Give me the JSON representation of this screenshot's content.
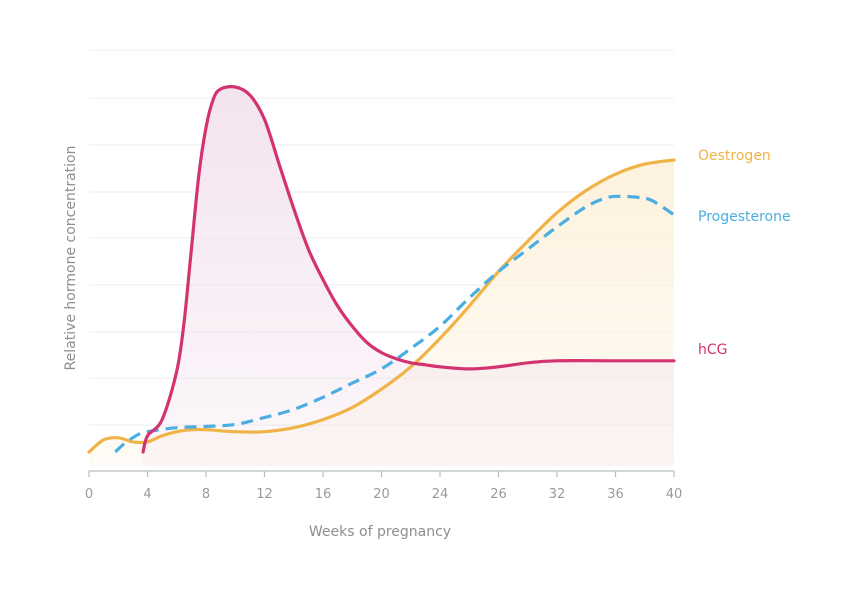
{
  "chart_data": {
    "type": "line",
    "title": "",
    "xlabel": "Weeks of pregnancy",
    "ylabel": "Relative hormone concentration",
    "x_ticks": [
      "0",
      "4",
      "8",
      "12",
      "16",
      "20",
      "24",
      "26",
      "32",
      "36",
      "40"
    ],
    "ylim": [
      0,
      100
    ],
    "grid": true,
    "legend": "series labels at right end of lines",
    "series": [
      {
        "name": "Oestrogen",
        "color": "#f0b347",
        "style": "solid",
        "fill": "#fdf1dc",
        "points": [
          [
            0,
            0
          ],
          [
            1,
            3
          ],
          [
            2,
            3.5
          ],
          [
            3,
            2.5
          ],
          [
            4,
            2.5
          ],
          [
            5,
            4
          ],
          [
            6,
            5
          ],
          [
            7,
            5.5
          ],
          [
            8,
            5.5
          ],
          [
            10,
            5
          ],
          [
            12,
            5
          ],
          [
            14,
            6
          ],
          [
            16,
            8
          ],
          [
            18,
            11
          ],
          [
            20,
            15.5
          ],
          [
            22,
            21
          ],
          [
            24,
            28
          ],
          [
            26,
            36
          ],
          [
            28,
            44.5
          ],
          [
            30,
            52
          ],
          [
            32,
            59
          ],
          [
            34,
            64.5
          ],
          [
            36,
            68.5
          ],
          [
            38,
            71
          ],
          [
            40,
            72
          ]
        ]
      },
      {
        "name": "Progesterone",
        "color": "#4aaee0",
        "style": "dashed",
        "points": [
          [
            1.8,
            0
          ],
          [
            2.4,
            2
          ],
          [
            3.3,
            4.2
          ],
          [
            4,
            5
          ],
          [
            6,
            6
          ],
          [
            8,
            6.3
          ],
          [
            10,
            6.8
          ],
          [
            12,
            8.5
          ],
          [
            14,
            10.5
          ],
          [
            16,
            13.5
          ],
          [
            18,
            17
          ],
          [
            20,
            20.5
          ],
          [
            22,
            25.5
          ],
          [
            24,
            31
          ],
          [
            26,
            38
          ],
          [
            28,
            44.5
          ],
          [
            30,
            50
          ],
          [
            32,
            55.5
          ],
          [
            34,
            60.5
          ],
          [
            35.5,
            62.8
          ],
          [
            36.5,
            63
          ],
          [
            37.5,
            62.8
          ],
          [
            38.5,
            62
          ],
          [
            40,
            58.5
          ]
        ]
      },
      {
        "name": "hCG",
        "color": "#d3336f",
        "style": "solid",
        "fill": "#f3e2ee",
        "points": [
          [
            3.7,
            0
          ],
          [
            4,
            4
          ],
          [
            5,
            8
          ],
          [
            6,
            20
          ],
          [
            6.5,
            32
          ],
          [
            7,
            50
          ],
          [
            7.5,
            68
          ],
          [
            8,
            80
          ],
          [
            8.5,
            87
          ],
          [
            9,
            89.5
          ],
          [
            10,
            90
          ],
          [
            11,
            88
          ],
          [
            12,
            82
          ],
          [
            13,
            71
          ],
          [
            14,
            60
          ],
          [
            15,
            50
          ],
          [
            16,
            42.5
          ],
          [
            17,
            36
          ],
          [
            18,
            31
          ],
          [
            19,
            27
          ],
          [
            20,
            24.5
          ],
          [
            21,
            23
          ],
          [
            22,
            22
          ],
          [
            23,
            21.5
          ],
          [
            24,
            21
          ],
          [
            26,
            20.5
          ],
          [
            28,
            21
          ],
          [
            30,
            22
          ],
          [
            32,
            22.5
          ],
          [
            36,
            22.5
          ],
          [
            40,
            22.5
          ]
        ]
      }
    ]
  }
}
